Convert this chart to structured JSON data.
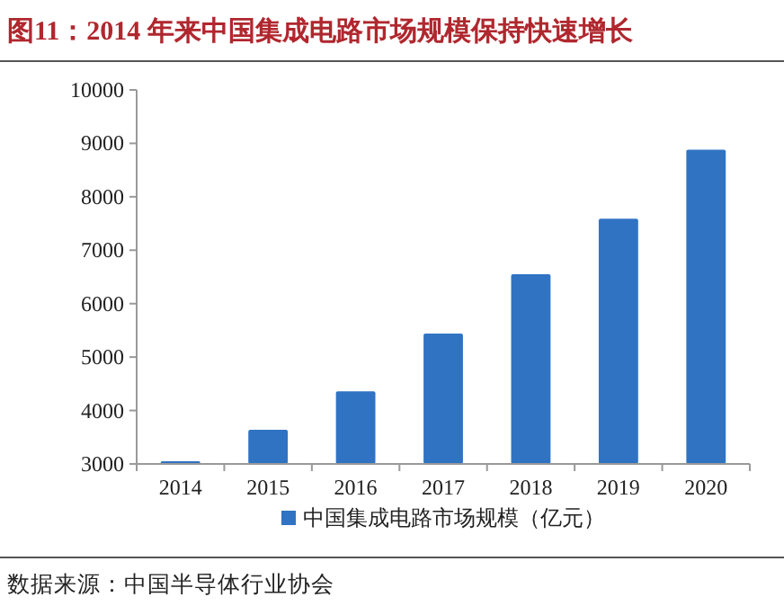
{
  "chart_data": {
    "type": "bar",
    "title": "图11：2014 年来中国集成电路市场规模保持快速增长",
    "categories": [
      "2014",
      "2015",
      "2016",
      "2017",
      "2018",
      "2019",
      "2020"
    ],
    "series": [
      {
        "name": "中国集成电路市场规模（亿元）",
        "color": "#3073c3",
        "values": [
          3050,
          3640,
          4360,
          5440,
          6550,
          7590,
          8880
        ]
      }
    ],
    "ylim": [
      3000,
      10000
    ],
    "yticks": [
      3000,
      4000,
      5000,
      6000,
      7000,
      8000,
      9000,
      10000
    ],
    "grid": false,
    "legend": "bottom",
    "annotations": [
      "数据来源：中国半导体行业协会"
    ]
  }
}
